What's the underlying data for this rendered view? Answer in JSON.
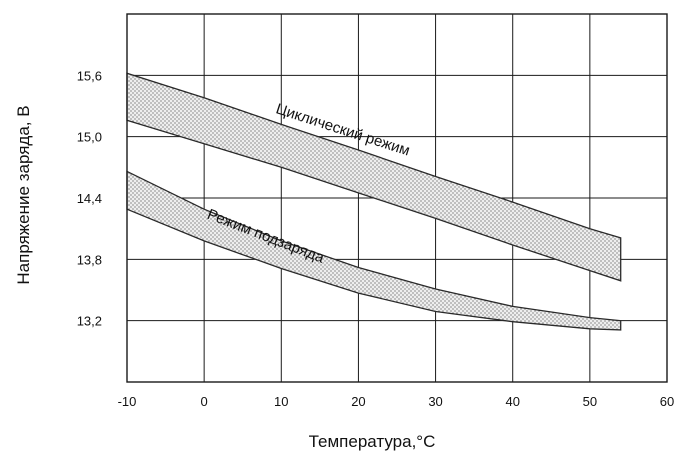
{
  "chart_data": {
    "type": "area",
    "xlabel": "Температура,°C",
    "ylabel": "Напряжение заряда, В",
    "xlim": [
      -10,
      60
    ],
    "ylim": [
      12.6,
      16.2
    ],
    "x_ticks": [
      "-10",
      "0",
      "10",
      "20",
      "30",
      "40",
      "50",
      "60"
    ],
    "y_ticks": [
      "13,2",
      "13,8",
      "14,4",
      "15,0",
      "15,6"
    ],
    "x_tick_values": [
      -10,
      0,
      10,
      20,
      30,
      40,
      50,
      60
    ],
    "y_tick_values": [
      13.2,
      13.8,
      14.4,
      15.0,
      15.6
    ],
    "grid": true,
    "series": [
      {
        "name": "Циклический режим",
        "x": [
          -10,
          0,
          10,
          20,
          30,
          40,
          50,
          54
        ],
        "upper": [
          15.62,
          15.38,
          15.12,
          14.87,
          14.61,
          14.36,
          14.1,
          14.01
        ],
        "lower": [
          15.16,
          14.93,
          14.7,
          14.45,
          14.2,
          13.94,
          13.69,
          13.59
        ]
      },
      {
        "name": "Режим подзаряда",
        "x": [
          -10,
          0,
          10,
          20,
          30,
          40,
          50,
          54
        ],
        "upper": [
          14.66,
          14.29,
          13.98,
          13.72,
          13.51,
          13.34,
          13.23,
          13.2
        ],
        "lower": [
          14.29,
          13.98,
          13.71,
          13.47,
          13.29,
          13.19,
          13.12,
          13.11
        ]
      }
    ],
    "colors": {
      "band_fill": "#eeeeee",
      "band_dots": "#4a4a4a",
      "grid": "#1a1a1a",
      "edge": "#2a2a2a"
    }
  }
}
